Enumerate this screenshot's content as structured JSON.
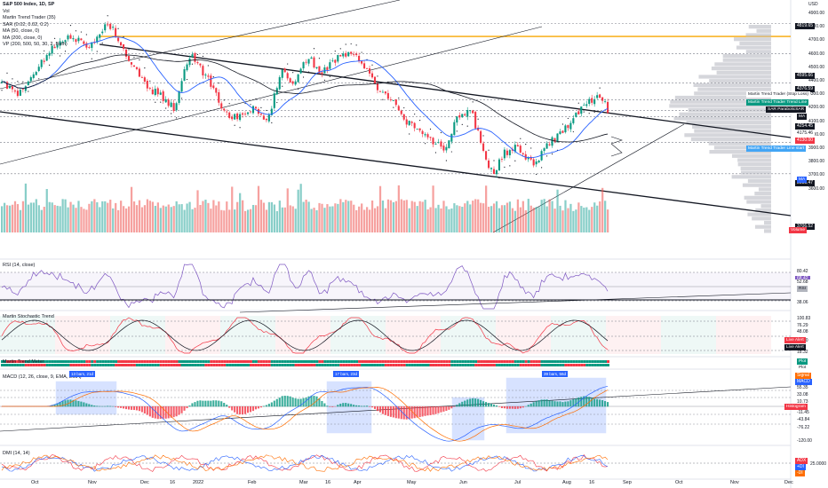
{
  "symbol_title": "S&P 500 Index, 1D, SP",
  "legend": [
    "Vol",
    "Martin Trend Trader (35)",
    "SAR (0.02, 0.02, 0.2)",
    "MA (50, close, 0)",
    "MA (200, close, 0)",
    "VP (200, 500, 50, 30, 2, Both)"
  ],
  "currency": "USD",
  "price_axis_labels": [
    "4900.00",
    "4800.00",
    "4700.00",
    "4600.00",
    "4500.00",
    "4400.00",
    "4300.00",
    "4200.00",
    "4100.00",
    "4000.00",
    "3900.00",
    "3800.00",
    "3700.00",
    "3600.00"
  ],
  "price_tags": [
    {
      "label": "4819.65",
      "bg": "#131722",
      "fg": "#ffffff"
    },
    {
      "label": "4595.66",
      "bg": "#131722",
      "fg": "#ffffff"
    },
    {
      "label": "4376.59",
      "bg": "#131722",
      "fg": "#ffffff"
    },
    {
      "label": "4254.45",
      "bg": "#131722",
      "fg": "#ffffff"
    },
    {
      "label": "4175.46",
      "bg": "#ffffff",
      "fg": "#131722"
    },
    {
      "label": "4130.00",
      "bg": "#f23645",
      "fg": "#ffffff"
    },
    {
      "label": "3938.47",
      "bg": "#131722",
      "fg": "#ffffff"
    },
    {
      "label": "3706.52",
      "bg": "#131722",
      "fg": "#ffffff"
    }
  ],
  "name_tags": [
    {
      "label": "Martin Trend Trader (Stop Loss)",
      "bg": "#ffffff",
      "fg": "#131722"
    },
    {
      "label": "Martin Trend Trader Trend Line",
      "bg": "#089981",
      "fg": "#ffffff"
    },
    {
      "label": "SAR ParabolicSAR",
      "bg": "#131722",
      "fg": "#ffffff"
    },
    {
      "label": "MA",
      "bg": "#131722",
      "fg": "#ffffff"
    },
    {
      "label": "Martin Trend Trader Line start",
      "bg": "#42a5f5",
      "fg": "#ffffff"
    },
    {
      "label": "MA",
      "bg": "#2962ff",
      "fg": "#ffffff"
    },
    {
      "label": "Volume",
      "bg": "#f23645",
      "fg": "#ffffff"
    }
  ],
  "rsi": {
    "title": "RSI (14, close)",
    "tags": [
      "80.42",
      "68.42",
      "52.68",
      "38.06"
    ],
    "name": "RSI"
  },
  "stoch": {
    "title": "Martin Stochastic Trend",
    "tags": [
      "100.83",
      "76.29",
      "48.08",
      "40.00",
      "18.32"
    ],
    "alerts": [
      "Live Alert",
      "Live Alert"
    ]
  },
  "mtm": {
    "title": "Martin Trend Meter",
    "tags": [
      "Plot",
      "Plot"
    ]
  },
  "macd": {
    "title": "MACD (12, 26, close, 9, EMA, EMA)",
    "tags": [
      "Signal",
      "MACD",
      "55.35",
      "33.08",
      "10.73",
      "-11.45",
      "-43.84",
      "-76.22",
      "-120.00"
    ],
    "hist_tag": "Histogram",
    "boxes": [
      "13 bars, 21d",
      "17 bars, 23d",
      "39 bars, 56d"
    ]
  },
  "dmi": {
    "title": "DMI (14, 14)",
    "tags": [
      "ADX",
      "+DI",
      "-DI",
      "25.0000"
    ]
  },
  "x_axis": [
    "Oct",
    "Nov",
    "Dec",
    "16",
    "2022",
    "Feb",
    "Mar",
    "16",
    "Apr",
    "May",
    "Jun",
    "Jul",
    "Aug",
    "16",
    "Sep",
    "Oct",
    "Nov",
    "Dec"
  ],
  "colors": {
    "up": "#089981",
    "down": "#f23645",
    "volup": "#26a69a",
    "voldown": "#ef5350",
    "ma50": "#2962ff",
    "ma200": "#131722",
    "sar": "#131722",
    "rsi": "#7e57c2",
    "stoch_k": "#f23645",
    "stoch_d": "#131722",
    "resistance": "#f7a600"
  }
}
